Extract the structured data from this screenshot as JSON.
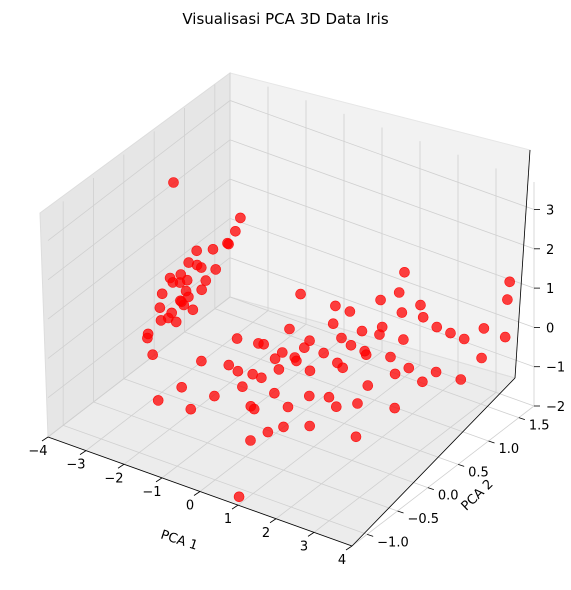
{
  "chart_data": {
    "type": "scatter",
    "title": "Visualisasi PCA 3D Data Iris",
    "xlabel": "PCA 1",
    "ylabel": "PCA 2",
    "zlabel": "",
    "xlim": [
      -4,
      4
    ],
    "ylim": [
      -1.25,
      1.75
    ],
    "zlim": [
      -2,
      3.7
    ],
    "xticks": [
      -4,
      -3,
      -2,
      -1,
      0,
      1,
      2,
      3,
      4
    ],
    "yticks": [
      "−1.0",
      "−0.5",
      "0.0",
      "0.5",
      "1.0",
      "1.5"
    ],
    "zticks": [
      "−2",
      "−1",
      "0",
      "1",
      "2",
      "3"
    ],
    "marker_color": "#ff0000",
    "grid": true,
    "points": [
      {
        "x": -3.2,
        "y": 0.45,
        "z": -0.3
      },
      {
        "x": -3.3,
        "y": 0.35,
        "z": -0.5
      },
      {
        "x": -3.1,
        "y": 0.5,
        "z": -0.2
      },
      {
        "x": -3.0,
        "y": 0.4,
        "z": 0.1
      },
      {
        "x": -2.9,
        "y": 0.3,
        "z": -0.1
      },
      {
        "x": -3.4,
        "y": 0.55,
        "z": 0.0
      },
      {
        "x": -3.15,
        "y": 0.2,
        "z": -0.4
      },
      {
        "x": -2.8,
        "y": 0.6,
        "z": 0.2
      },
      {
        "x": -3.5,
        "y": 0.3,
        "z": -0.7
      },
      {
        "x": -3.05,
        "y": 0.45,
        "z": 0.3
      },
      {
        "x": -2.7,
        "y": 0.7,
        "z": 0.4
      },
      {
        "x": -3.25,
        "y": 0.6,
        "z": 0.5
      },
      {
        "x": -2.95,
        "y": 0.55,
        "z": 0.6
      },
      {
        "x": -3.6,
        "y": 0.15,
        "z": -0.9
      },
      {
        "x": -2.6,
        "y": 0.85,
        "z": 0.9
      },
      {
        "x": -2.5,
        "y": 0.9,
        "z": 1.2
      },
      {
        "x": -2.55,
        "y": 0.8,
        "z": 1.0
      },
      {
        "x": -2.45,
        "y": 0.95,
        "z": 1.5
      },
      {
        "x": -3.35,
        "y": 0.4,
        "z": 0.2
      },
      {
        "x": -3.45,
        "y": 0.25,
        "z": -0.3
      },
      {
        "x": -3.55,
        "y": 0.35,
        "z": -0.1
      },
      {
        "x": -3.7,
        "y": 0.2,
        "z": -1.1
      },
      {
        "x": -3.2,
        "y": 0.7,
        "z": 0.7
      },
      {
        "x": -2.85,
        "y": 0.75,
        "z": 0.8
      },
      {
        "x": -3.1,
        "y": 0.3,
        "z": -0.6
      },
      {
        "x": -3.4,
        "y": 0.1,
        "z": -1.3
      },
      {
        "x": -3.0,
        "y": 0.65,
        "z": 0.4
      },
      {
        "x": -2.75,
        "y": 0.5,
        "z": 0.1
      },
      {
        "x": -3.3,
        "y": 0.5,
        "z": 0.3
      },
      {
        "x": -3.5,
        "y": 0.45,
        "z": 0.2
      },
      {
        "x": -3.65,
        "y": 0.6,
        "z": 2.4
      },
      {
        "x": -3.15,
        "y": 0.4,
        "z": -0.2
      },
      {
        "x": -2.9,
        "y": 0.45,
        "z": -0.4
      },
      {
        "x": -0.2,
        "y": -0.5,
        "z": 0.1
      },
      {
        "x": 0.1,
        "y": -0.3,
        "z": -0.2
      },
      {
        "x": 0.4,
        "y": -0.2,
        "z": 0.0
      },
      {
        "x": -0.5,
        "y": -0.7,
        "z": -0.4
      },
      {
        "x": 0.7,
        "y": -0.1,
        "z": 0.2
      },
      {
        "x": 0.9,
        "y": 0.0,
        "z": -0.1
      },
      {
        "x": 1.1,
        "y": 0.1,
        "z": 0.3
      },
      {
        "x": -0.8,
        "y": -0.9,
        "z": -0.6
      },
      {
        "x": 0.3,
        "y": -0.6,
        "z": -0.5
      },
      {
        "x": 0.6,
        "y": -0.4,
        "z": -0.3
      },
      {
        "x": 1.3,
        "y": 0.2,
        "z": 0.0
      },
      {
        "x": 1.5,
        "y": 0.3,
        "z": 0.4
      },
      {
        "x": 0.0,
        "y": -0.2,
        "z": 0.5
      },
      {
        "x": -0.3,
        "y": -0.1,
        "z": 0.3
      },
      {
        "x": 0.2,
        "y": 0.1,
        "z": 0.6
      },
      {
        "x": 0.5,
        "y": 0.0,
        "z": 0.1
      },
      {
        "x": 0.8,
        "y": -0.3,
        "z": -0.7
      },
      {
        "x": 1.0,
        "y": -0.5,
        "z": -0.9
      },
      {
        "x": -0.6,
        "y": -0.4,
        "z": 0.0
      },
      {
        "x": -1.0,
        "y": -0.6,
        "z": 0.2
      },
      {
        "x": -1.2,
        "y": -0.8,
        "z": -0.3
      },
      {
        "x": -1.5,
        "y": -1.0,
        "z": -0.5
      },
      {
        "x": 1.7,
        "y": 0.4,
        "z": 0.2
      },
      {
        "x": 1.2,
        "y": -0.2,
        "z": -0.4
      },
      {
        "x": 0.35,
        "y": 0.25,
        "z": 0.0
      },
      {
        "x": -0.1,
        "y": 0.05,
        "z": -0.2
      },
      {
        "x": 0.65,
        "y": 0.15,
        "z": 0.4
      },
      {
        "x": 1.4,
        "y": 0.0,
        "z": -0.6
      },
      {
        "x": 0.45,
        "y": -0.7,
        "z": -1.2
      },
      {
        "x": -0.4,
        "y": -0.3,
        "z": -0.6
      },
      {
        "x": 0.15,
        "y": -0.45,
        "z": -0.8
      },
      {
        "x": 0.95,
        "y": 0.35,
        "z": 0.7
      },
      {
        "x": -0.7,
        "y": -0.2,
        "z": 0.4
      },
      {
        "x": 1.8,
        "y": 0.6,
        "z": 1.3
      },
      {
        "x": 2.0,
        "y": 0.5,
        "z": 0.8
      },
      {
        "x": 2.2,
        "y": 0.7,
        "z": 1.0
      },
      {
        "x": 1.6,
        "y": 0.1,
        "z": 0.1
      },
      {
        "x": 2.4,
        "y": 0.6,
        "z": 0.5
      },
      {
        "x": 2.6,
        "y": 0.8,
        "z": 0.9
      },
      {
        "x": 1.9,
        "y": 0.3,
        "z": 0.3
      },
      {
        "x": 2.8,
        "y": 0.9,
        "z": 0.6
      },
      {
        "x": 3.0,
        "y": 1.0,
        "z": 0.4
      },
      {
        "x": 2.5,
        "y": 0.4,
        "z": -0.1
      },
      {
        "x": 2.1,
        "y": 0.2,
        "z": -0.3
      },
      {
        "x": 3.2,
        "y": 1.1,
        "z": 0.2
      },
      {
        "x": 2.3,
        "y": 0.45,
        "z": 0.2
      },
      {
        "x": 1.85,
        "y": 0.55,
        "z": 0.5
      },
      {
        "x": 2.7,
        "y": 0.5,
        "z": 0.0
      },
      {
        "x": 3.4,
        "y": 1.3,
        "z": 0.3
      },
      {
        "x": 3.6,
        "y": 1.6,
        "z": 1.2
      },
      {
        "x": 3.7,
        "y": 1.5,
        "z": 0.9
      },
      {
        "x": 3.1,
        "y": 0.7,
        "z": -0.2
      },
      {
        "x": 2.9,
        "y": 0.6,
        "z": -0.4
      },
      {
        "x": 1.75,
        "y": -0.1,
        "z": -0.6
      },
      {
        "x": 2.15,
        "y": 0.0,
        "z": -0.5
      },
      {
        "x": 0.55,
        "y": -0.95,
        "z": -2.3
      },
      {
        "x": 1.05,
        "y": -0.25,
        "z": 2.2
      },
      {
        "x": 3.35,
        "y": 0.95,
        "z": -0.6
      },
      {
        "x": 3.5,
        "y": 1.2,
        "z": -0.3
      },
      {
        "x": 2.45,
        "y": 0.85,
        "z": 1.1
      },
      {
        "x": 1.55,
        "y": 0.45,
        "z": 0.6
      },
      {
        "x": 1.25,
        "y": 0.3,
        "z": 0.5
      },
      {
        "x": 2.05,
        "y": 0.75,
        "z": 1.4
      },
      {
        "x": 0.25,
        "y": -0.05,
        "z": 0.2
      },
      {
        "x": -0.05,
        "y": -0.35,
        "z": -0.1
      },
      {
        "x": 0.75,
        "y": -0.6,
        "z": -1.0
      },
      {
        "x": 1.45,
        "y": -0.35,
        "z": -0.9
      },
      {
        "x": 2.65,
        "y": 0.3,
        "z": -0.8
      },
      {
        "x": 1.15,
        "y": 0.5,
        "z": 0.9
      },
      {
        "x": 0.85,
        "y": 0.45,
        "z": 1.0
      },
      {
        "x": 1.95,
        "y": 0.9,
        "z": 1.7
      },
      {
        "x": 3.8,
        "y": 1.4,
        "z": 0.1
      },
      {
        "x": 2.35,
        "y": -0.15,
        "z": -1.1
      }
    ]
  }
}
